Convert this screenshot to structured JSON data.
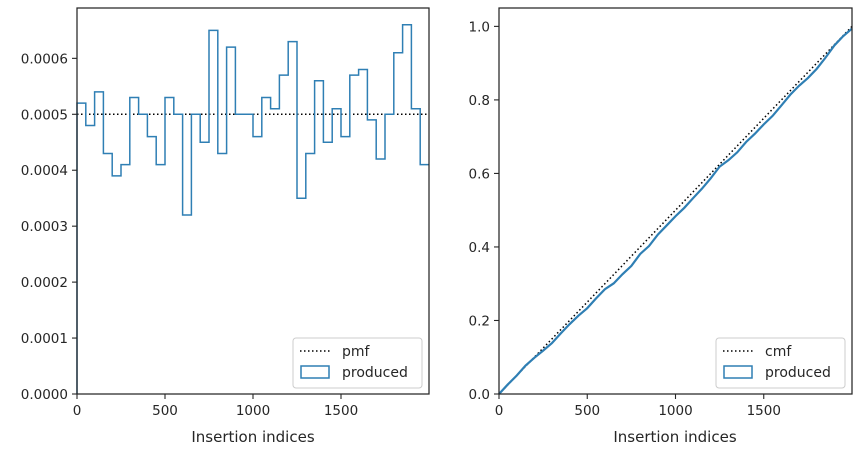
{
  "chart_data": [
    {
      "type": "step",
      "xlabel": "Insertion indices",
      "ylabel": "",
      "title": "",
      "xlim": [
        0,
        2000
      ],
      "ylim": [
        0,
        0.00069
      ],
      "xticks": [
        {
          "v": 0,
          "label": "0"
        },
        {
          "v": 500,
          "label": "500"
        },
        {
          "v": 1000,
          "label": "1000"
        },
        {
          "v": 1500,
          "label": "1500"
        }
      ],
      "yticks": [
        {
          "v": 0,
          "label": "0.0000"
        },
        {
          "v": 0.0001,
          "label": "0.0001"
        },
        {
          "v": 0.0002,
          "label": "0.0002"
        },
        {
          "v": 0.0003,
          "label": "0.0003"
        },
        {
          "v": 0.0004,
          "label": "0.0004"
        },
        {
          "v": 0.0005,
          "label": "0.0005"
        },
        {
          "v": 0.0006,
          "label": "0.0006"
        }
      ],
      "reference_line": {
        "name": "pmf",
        "value": 0.0005,
        "style": "dotted",
        "color": "#000000"
      },
      "histogram": {
        "name": "produced",
        "color": "#2f7fb4",
        "bin_width": 50,
        "values": [
          0.00052,
          0.00048,
          0.00054,
          0.00043,
          0.00039,
          0.00041,
          0.00053,
          0.0005,
          0.00046,
          0.00041,
          0.00053,
          0.0005,
          0.00032,
          0.0005,
          0.00045,
          0.00065,
          0.00043,
          0.00062,
          0.0005,
          0.0005,
          0.00046,
          0.00053,
          0.00051,
          0.00057,
          0.00063,
          0.00035,
          0.00043,
          0.00056,
          0.00045,
          0.00051,
          0.00046,
          0.00057,
          0.00058,
          0.00049,
          0.00042,
          0.0005,
          0.00061,
          0.00066,
          0.00051,
          0.00041
        ]
      },
      "legend": {
        "position": "lower-right",
        "entries": [
          "pmf",
          "produced"
        ]
      }
    },
    {
      "type": "step",
      "xlabel": "Insertion indices",
      "ylabel": "",
      "title": "",
      "xlim": [
        0,
        2000
      ],
      "ylim": [
        0,
        1.05
      ],
      "xticks": [
        {
          "v": 0,
          "label": "0"
        },
        {
          "v": 500,
          "label": "500"
        },
        {
          "v": 1000,
          "label": "1000"
        },
        {
          "v": 1500,
          "label": "1500"
        }
      ],
      "yticks": [
        {
          "v": 0,
          "label": "0.0"
        },
        {
          "v": 0.2,
          "label": "0.2"
        },
        {
          "v": 0.4,
          "label": "0.4"
        },
        {
          "v": 0.6,
          "label": "0.6"
        },
        {
          "v": 0.8,
          "label": "0.8"
        },
        {
          "v": 1.0,
          "label": "1.0"
        }
      ],
      "reference_line": {
        "name": "cmf",
        "from": [
          0,
          0
        ],
        "to": [
          2000,
          1.0
        ],
        "style": "dotted",
        "color": "#000000"
      },
      "cumulative": {
        "name": "produced",
        "color": "#2f7fb4",
        "derived_from_bins_of": "chart 1 histogram"
      },
      "legend": {
        "position": "lower-right",
        "entries": [
          "cmf",
          "produced"
        ]
      }
    }
  ]
}
